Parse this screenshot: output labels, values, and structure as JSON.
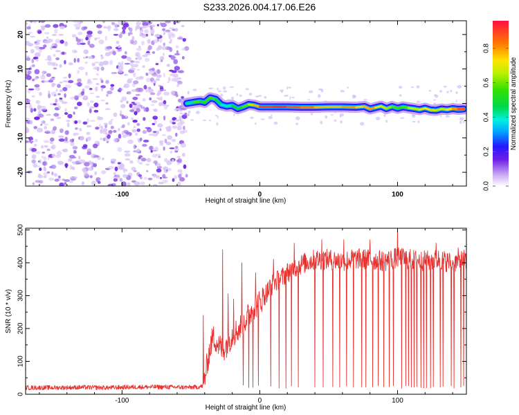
{
  "title": "S233.2026.004.17.06.E26",
  "chart_data": [
    {
      "type": "heatmap",
      "title": "S233.2026.004.17.06.E26",
      "xlabel": "Height of straight line (km)",
      "ylabel": "Frequency (Hz)",
      "xlim": [
        -170,
        150
      ],
      "ylim": [
        -24,
        24
      ],
      "x_ticks": [
        -100,
        0,
        100
      ],
      "x_tick_labels": [
        "-100",
        "0",
        "100"
      ],
      "y_ticks": [
        20,
        10,
        0,
        -10,
        -20
      ],
      "y_tick_labels": [
        "20",
        "10",
        "0",
        "-10",
        "-20"
      ],
      "colorbar": {
        "label": "Normalized spectral amplitude",
        "range": [
          0.0,
          0.96
        ],
        "ticks": [
          0.0,
          0.2,
          0.4,
          0.6,
          0.8
        ],
        "tick_labels": [
          "0.0",
          "0.2",
          "0.4",
          "0.6",
          "0.8"
        ]
      },
      "noise_region_x": [
        -170,
        -53
      ],
      "signal_trace": {
        "x": [
          -53,
          -47,
          -43,
          -40,
          -36,
          -32,
          -28,
          -24,
          -20,
          -16,
          -12,
          -8,
          -4,
          0,
          10,
          20,
          30,
          40,
          50,
          60,
          70,
          76,
          80,
          84,
          88,
          92,
          96,
          100,
          104,
          108,
          112,
          116,
          120,
          124,
          128,
          132,
          136,
          140,
          144,
          148
        ],
        "frequency_hz": [
          0.0,
          0.4,
          0.6,
          0.3,
          1.6,
          1.2,
          -0.4,
          -0.8,
          -0.6,
          -1.5,
          -1.0,
          -0.3,
          -0.5,
          -1.0,
          -1.0,
          -1.0,
          -1.1,
          -1.1,
          -1.0,
          -1.0,
          -1.1,
          -0.9,
          -1.6,
          -1.2,
          -0.8,
          -1.5,
          -0.9,
          -1.4,
          -1.0,
          -1.3,
          -1.5,
          -1.8,
          -1.4,
          -1.9,
          -2.0,
          -1.6,
          -1.8,
          -1.5,
          -1.7,
          -1.6
        ],
        "amplitude": [
          0.3,
          0.55,
          0.6,
          0.45,
          0.65,
          0.5,
          0.4,
          0.35,
          0.45,
          0.5,
          0.55,
          0.6,
          0.7,
          0.85,
          0.95,
          0.9,
          0.85,
          0.8,
          0.75,
          0.8,
          0.8,
          0.7,
          0.85,
          0.75,
          0.65,
          0.7,
          0.55,
          0.6,
          0.5,
          0.65,
          0.7,
          0.6,
          0.8,
          0.65,
          0.7,
          0.6,
          0.75,
          0.7,
          0.9,
          0.85
        ]
      }
    },
    {
      "type": "line",
      "xlabel": "Height of straight line (km)",
      "ylabel": "SNR (10 * v/v)",
      "xlim": [
        -170,
        150
      ],
      "ylim": [
        0,
        505
      ],
      "x_ticks": [
        -100,
        0,
        100
      ],
      "x_tick_labels": [
        "-100",
        "0",
        "100"
      ],
      "y_ticks": [
        0,
        100,
        200,
        300,
        400,
        500
      ],
      "y_tick_labels": [
        "0",
        "100",
        "200",
        "300",
        "400",
        "500"
      ],
      "series": [
        {
          "name": "SNR",
          "color": "#e8302e",
          "x": [
            -170,
            -150,
            -130,
            -110,
            -90,
            -70,
            -50,
            -45,
            -41,
            -40,
            -39,
            -38,
            -36,
            -34,
            -32,
            -30,
            -27,
            -25,
            -20,
            -15,
            -10,
            -5,
            0,
            5,
            10,
            15,
            20,
            25,
            30,
            40,
            50,
            60,
            70,
            80,
            90,
            100,
            110,
            120,
            130,
            140,
            150
          ],
          "values": [
            20,
            20,
            21,
            20,
            22,
            22,
            21,
            22,
            25,
            50,
            70,
            100,
            140,
            175,
            165,
            150,
            135,
            145,
            180,
            200,
            230,
            260,
            280,
            310,
            340,
            350,
            370,
            385,
            395,
            410,
            410,
            405,
            412,
            410,
            405,
            415,
            410,
            405,
            410,
            400,
            410
          ]
        }
      ],
      "spikes_up": [
        [
          -41,
          240
        ],
        [
          -27,
          440
        ],
        [
          -23,
          305
        ],
        [
          -19,
          290
        ],
        [
          -13,
          400
        ],
        [
          -3,
          370
        ],
        [
          10,
          410
        ],
        [
          25,
          460
        ],
        [
          45,
          470
        ],
        [
          61,
          470
        ],
        [
          80,
          470
        ],
        [
          100,
          508
        ],
        [
          128,
          460
        ],
        [
          144,
          445
        ]
      ],
      "dropouts_x": [
        -12,
        -8,
        -5,
        -1,
        8,
        14,
        19,
        23,
        28,
        40,
        46,
        53,
        58,
        63,
        68,
        74,
        77,
        82,
        86,
        90,
        94,
        97,
        100,
        103,
        106,
        108,
        110,
        112,
        114,
        117,
        119,
        121,
        124,
        126,
        128,
        131,
        133,
        139,
        141,
        146,
        148
      ]
    }
  ]
}
